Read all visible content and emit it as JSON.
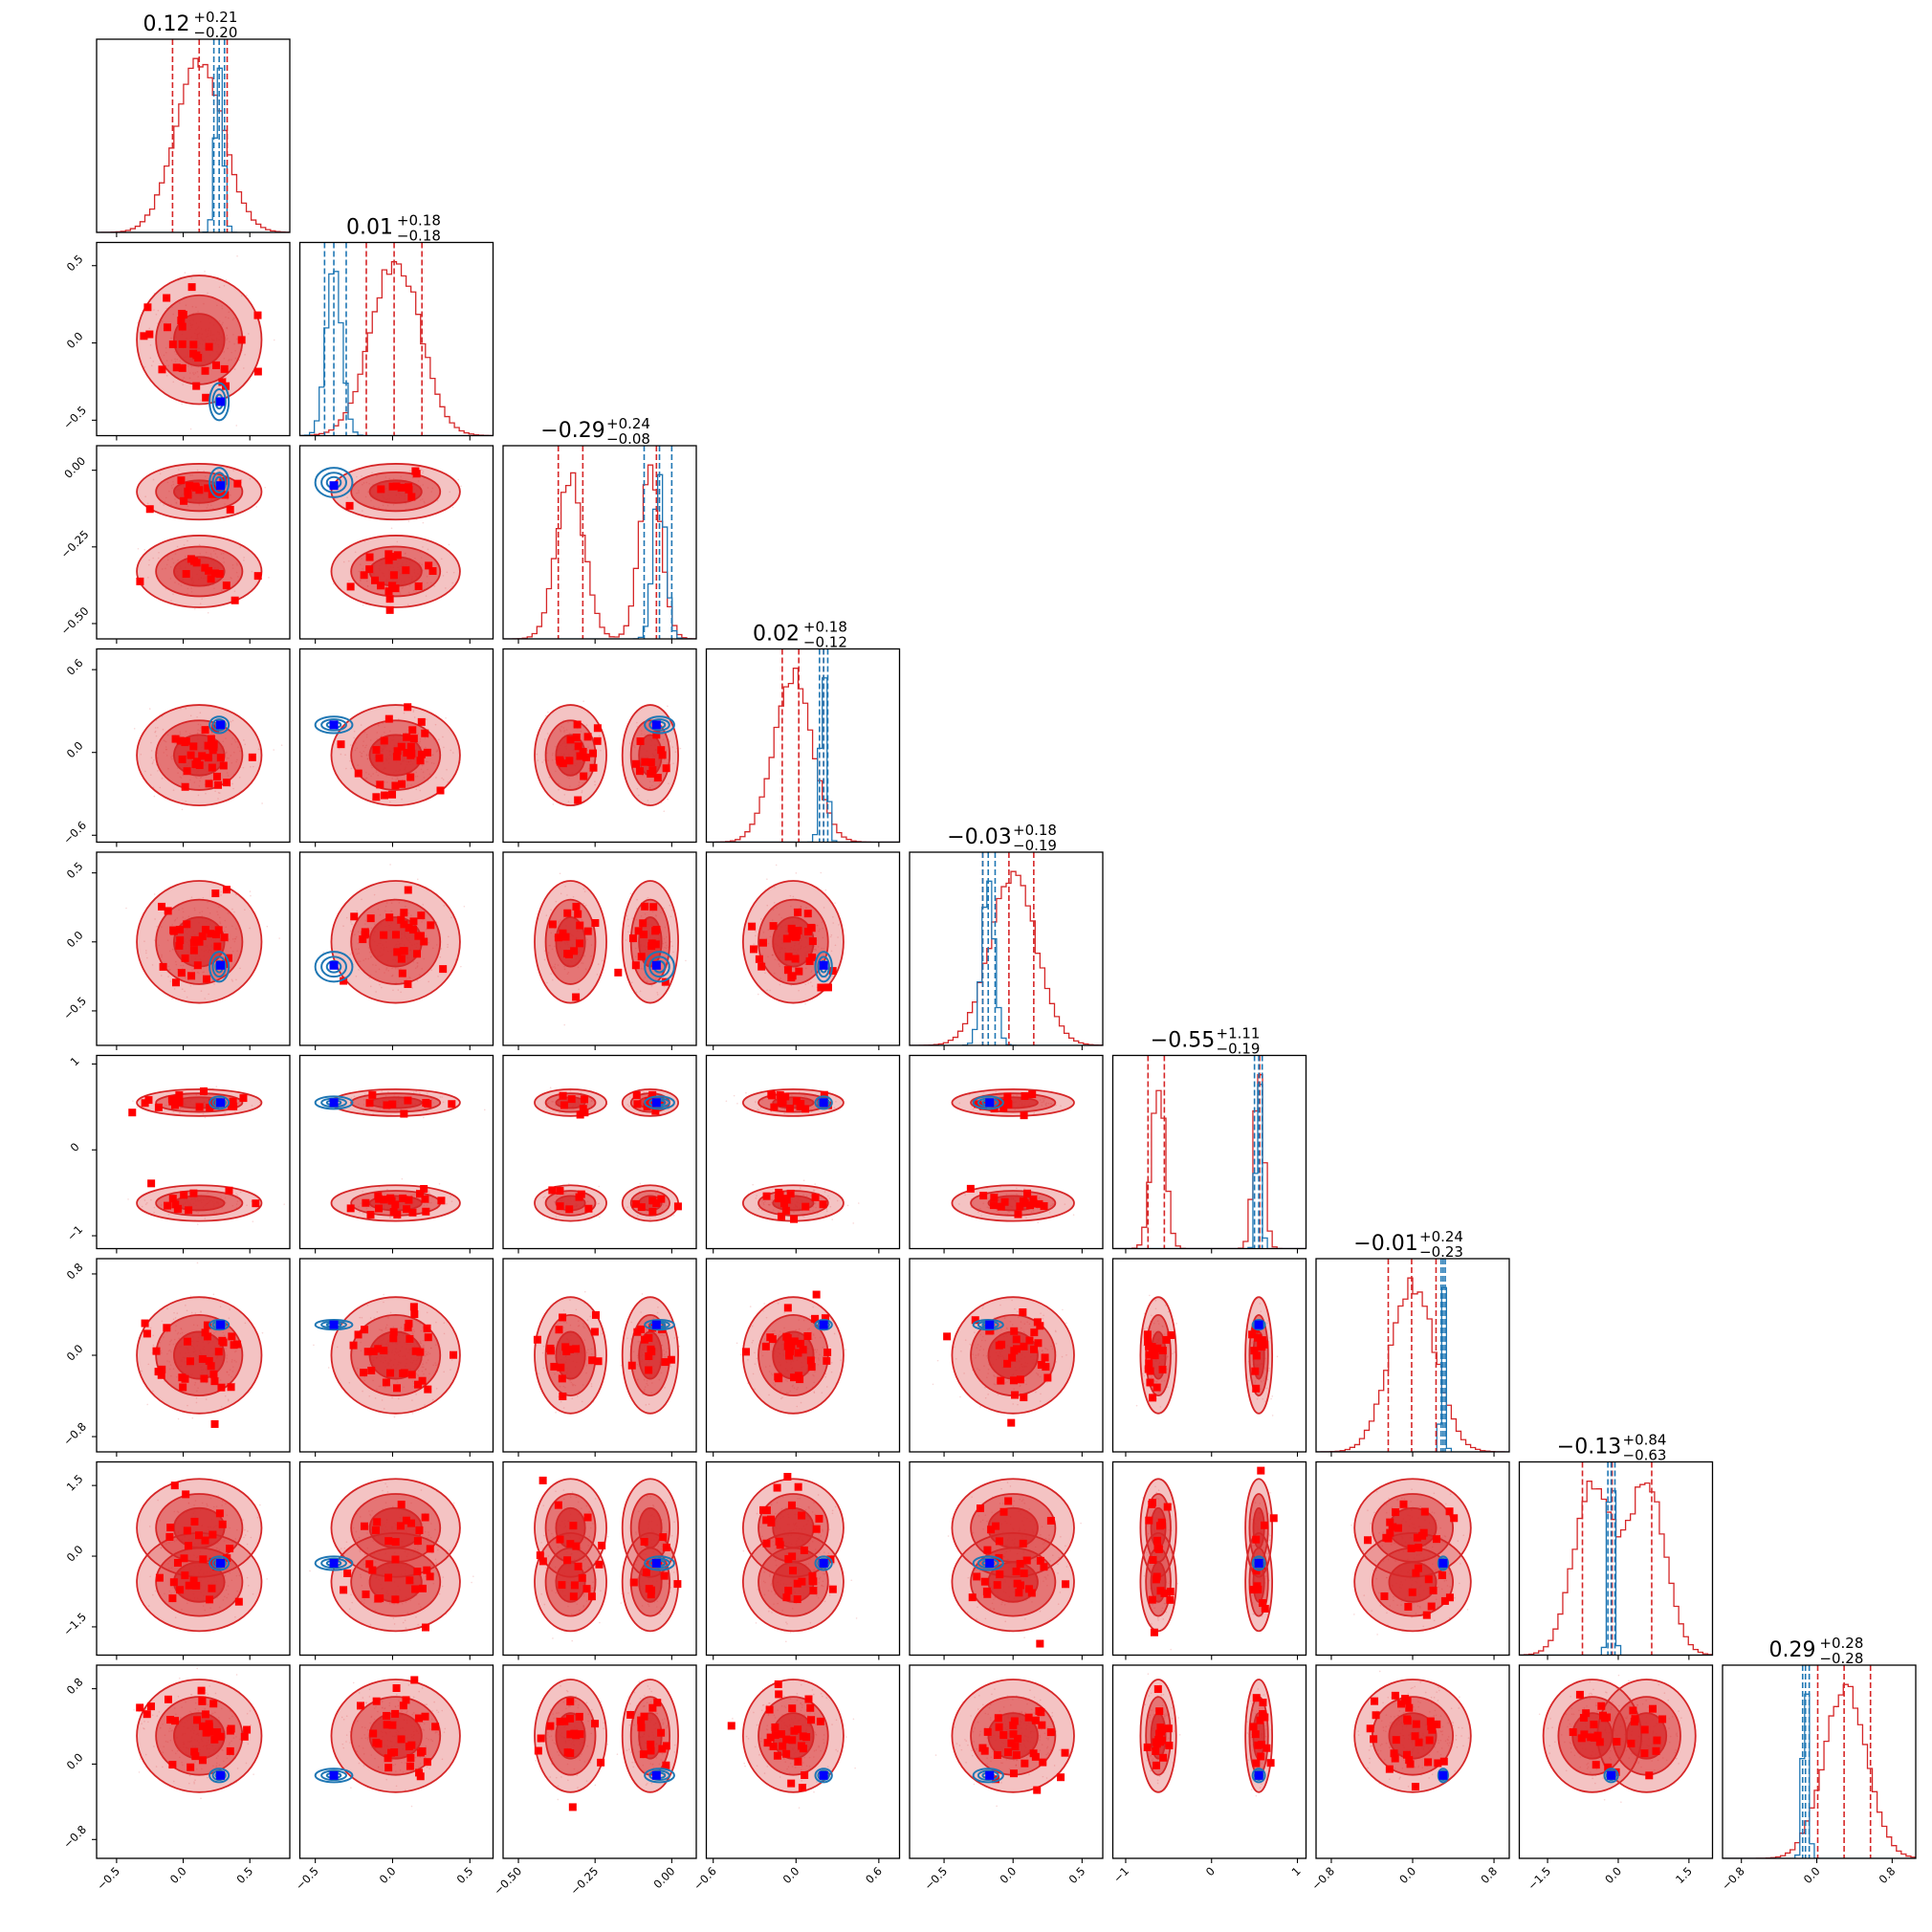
{
  "chart_data": {
    "type": "scatter",
    "subtype": "corner-plot",
    "n_params": 9,
    "colors": {
      "samples_a": "#d62728",
      "samples_b": "#1f77b4",
      "truth_marker": "#0000ff",
      "highlight_marker": "#ff0000"
    },
    "axis_ranges": [
      [
        -0.65,
        0.8
      ],
      [
        -0.6,
        0.65
      ],
      [
        -0.55,
        0.08
      ],
      [
        -0.65,
        0.75
      ],
      [
        -0.75,
        0.65
      ],
      [
        -1.15,
        1.1
      ],
      [
        -0.95,
        0.95
      ],
      [
        -2.1,
        2.0
      ],
      [
        -1.0,
        1.05
      ]
    ],
    "ticks": [
      [
        -0.5,
        0.0,
        0.5
      ],
      [
        -0.5,
        0.0,
        0.5
      ],
      [
        -0.5,
        -0.25,
        0.0
      ],
      [
        -0.6,
        0.0,
        0.6
      ],
      [
        -0.5,
        0.0,
        0.5
      ],
      [
        -1,
        0,
        1
      ],
      [
        -0.8,
        0.0,
        0.8
      ],
      [
        -1.5,
        0.0,
        1.5
      ],
      [
        -0.8,
        0.0,
        0.8
      ]
    ],
    "tick_labels": [
      [
        "−0.5",
        "0.0",
        "0.5"
      ],
      [
        "−0.5",
        "0.0",
        "0.5"
      ],
      [
        "−0.50",
        "−0.25",
        "0.00"
      ],
      [
        "−0.6",
        "0.0",
        "0.6"
      ],
      [
        "−0.5",
        "0.0",
        "0.5"
      ],
      [
        "−1",
        "0",
        "1"
      ],
      [
        "−0.8",
        "0.0",
        "0.8"
      ],
      [
        "−1.5",
        "0.0",
        "1.5"
      ],
      [
        "−0.8",
        "0.0",
        "0.8"
      ]
    ],
    "titles": [
      {
        "median": "0.12",
        "upper": "+0.21",
        "lower": "−0.20"
      },
      {
        "median": "0.01",
        "upper": "+0.18",
        "lower": "−0.18"
      },
      {
        "median": "−0.29",
        "upper": "+0.24",
        "lower": "−0.08"
      },
      {
        "median": "0.02",
        "upper": "+0.18",
        "lower": "−0.12"
      },
      {
        "median": "−0.03",
        "upper": "+0.18",
        "lower": "−0.19"
      },
      {
        "median": "−0.55",
        "upper": "+1.11",
        "lower": "−0.19"
      },
      {
        "median": "−0.01",
        "upper": "+0.24",
        "lower": "−0.23"
      },
      {
        "median": "−0.13",
        "upper": "+0.84",
        "lower": "−0.63"
      },
      {
        "median": "0.29",
        "upper": "+0.28",
        "lower": "−0.28"
      }
    ],
    "truth": [
      0.28,
      -0.38,
      -0.05,
      0.2,
      -0.17,
      0.55,
      0.3,
      -0.15,
      -0.12
    ],
    "posterior_a": [
      {
        "modes": [
          {
            "mu": 0.12,
            "sd": 0.18,
            "w": 1
          }
        ],
        "quantiles": [
          -0.08,
          0.12,
          0.33
        ]
      },
      {
        "modes": [
          {
            "mu": 0.02,
            "sd": 0.16,
            "w": 1
          }
        ],
        "quantiles": [
          -0.17,
          0.01,
          0.19
        ]
      },
      {
        "modes": [
          {
            "mu": -0.33,
            "sd": 0.045,
            "w": 0.55
          },
          {
            "mu": -0.07,
            "sd": 0.035,
            "w": 0.45
          }
        ],
        "quantiles": [
          -0.37,
          -0.29,
          -0.05
        ]
      },
      {
        "modes": [
          {
            "mu": -0.02,
            "sd": 0.14,
            "w": 1
          }
        ],
        "quantiles": [
          -0.1,
          0.02,
          0.2
        ]
      },
      {
        "modes": [
          {
            "mu": 0.0,
            "sd": 0.17,
            "w": 1
          }
        ],
        "quantiles": [
          -0.22,
          -0.03,
          0.15
        ]
      },
      {
        "modes": [
          {
            "mu": -0.62,
            "sd": 0.08,
            "w": 0.55
          },
          {
            "mu": 0.55,
            "sd": 0.06,
            "w": 0.45
          }
        ],
        "quantiles": [
          -0.74,
          -0.55,
          0.56
        ]
      },
      {
        "modes": [
          {
            "mu": 0.0,
            "sd": 0.22,
            "w": 1
          }
        ],
        "quantiles": [
          -0.24,
          -0.01,
          0.23
        ]
      },
      {
        "modes": [
          {
            "mu": -0.55,
            "sd": 0.4,
            "w": 0.5
          },
          {
            "mu": 0.6,
            "sd": 0.4,
            "w": 0.5
          }
        ],
        "quantiles": [
          -0.76,
          -0.13,
          0.71
        ]
      },
      {
        "modes": [
          {
            "mu": 0.3,
            "sd": 0.23,
            "w": 1
          }
        ],
        "quantiles": [
          0.01,
          0.29,
          0.57
        ]
      }
    ],
    "posterior_b": [
      {
        "modes": [
          {
            "mu": 0.27,
            "sd": 0.03,
            "w": 1
          }
        ],
        "quantiles": [
          0.23,
          0.27,
          0.31
        ]
      },
      {
        "modes": [
          {
            "mu": -0.38,
            "sd": 0.05,
            "w": 1
          }
        ],
        "quantiles": [
          -0.44,
          -0.38,
          -0.3
        ]
      },
      {
        "modes": [
          {
            "mu": -0.04,
            "sd": 0.02,
            "w": 1
          }
        ],
        "quantiles": [
          -0.09,
          -0.04,
          0.0
        ]
      },
      {
        "modes": [
          {
            "mu": 0.2,
            "sd": 0.025,
            "w": 1
          }
        ],
        "quantiles": [
          0.17,
          0.2,
          0.23
        ]
      },
      {
        "modes": [
          {
            "mu": -0.18,
            "sd": 0.045,
            "w": 1
          }
        ],
        "quantiles": [
          -0.22,
          -0.18,
          -0.13
        ]
      },
      {
        "modes": [
          {
            "mu": 0.55,
            "sd": 0.03,
            "w": 1
          }
        ],
        "quantiles": [
          0.5,
          0.55,
          0.59
        ]
      },
      {
        "modes": [
          {
            "mu": 0.3,
            "sd": 0.02,
            "w": 1
          }
        ],
        "quantiles": [
          0.28,
          0.3,
          0.32
        ]
      },
      {
        "modes": [
          {
            "mu": -0.15,
            "sd": 0.06,
            "w": 1
          }
        ],
        "quantiles": [
          -0.22,
          -0.15,
          -0.07
        ]
      },
      {
        "modes": [
          {
            "mu": -0.12,
            "sd": 0.03,
            "w": 1
          }
        ],
        "quantiles": [
          -0.15,
          -0.12,
          -0.08
        ]
      }
    ],
    "credible_levels": [
      0.39,
      0.86,
      0.99
    ]
  }
}
